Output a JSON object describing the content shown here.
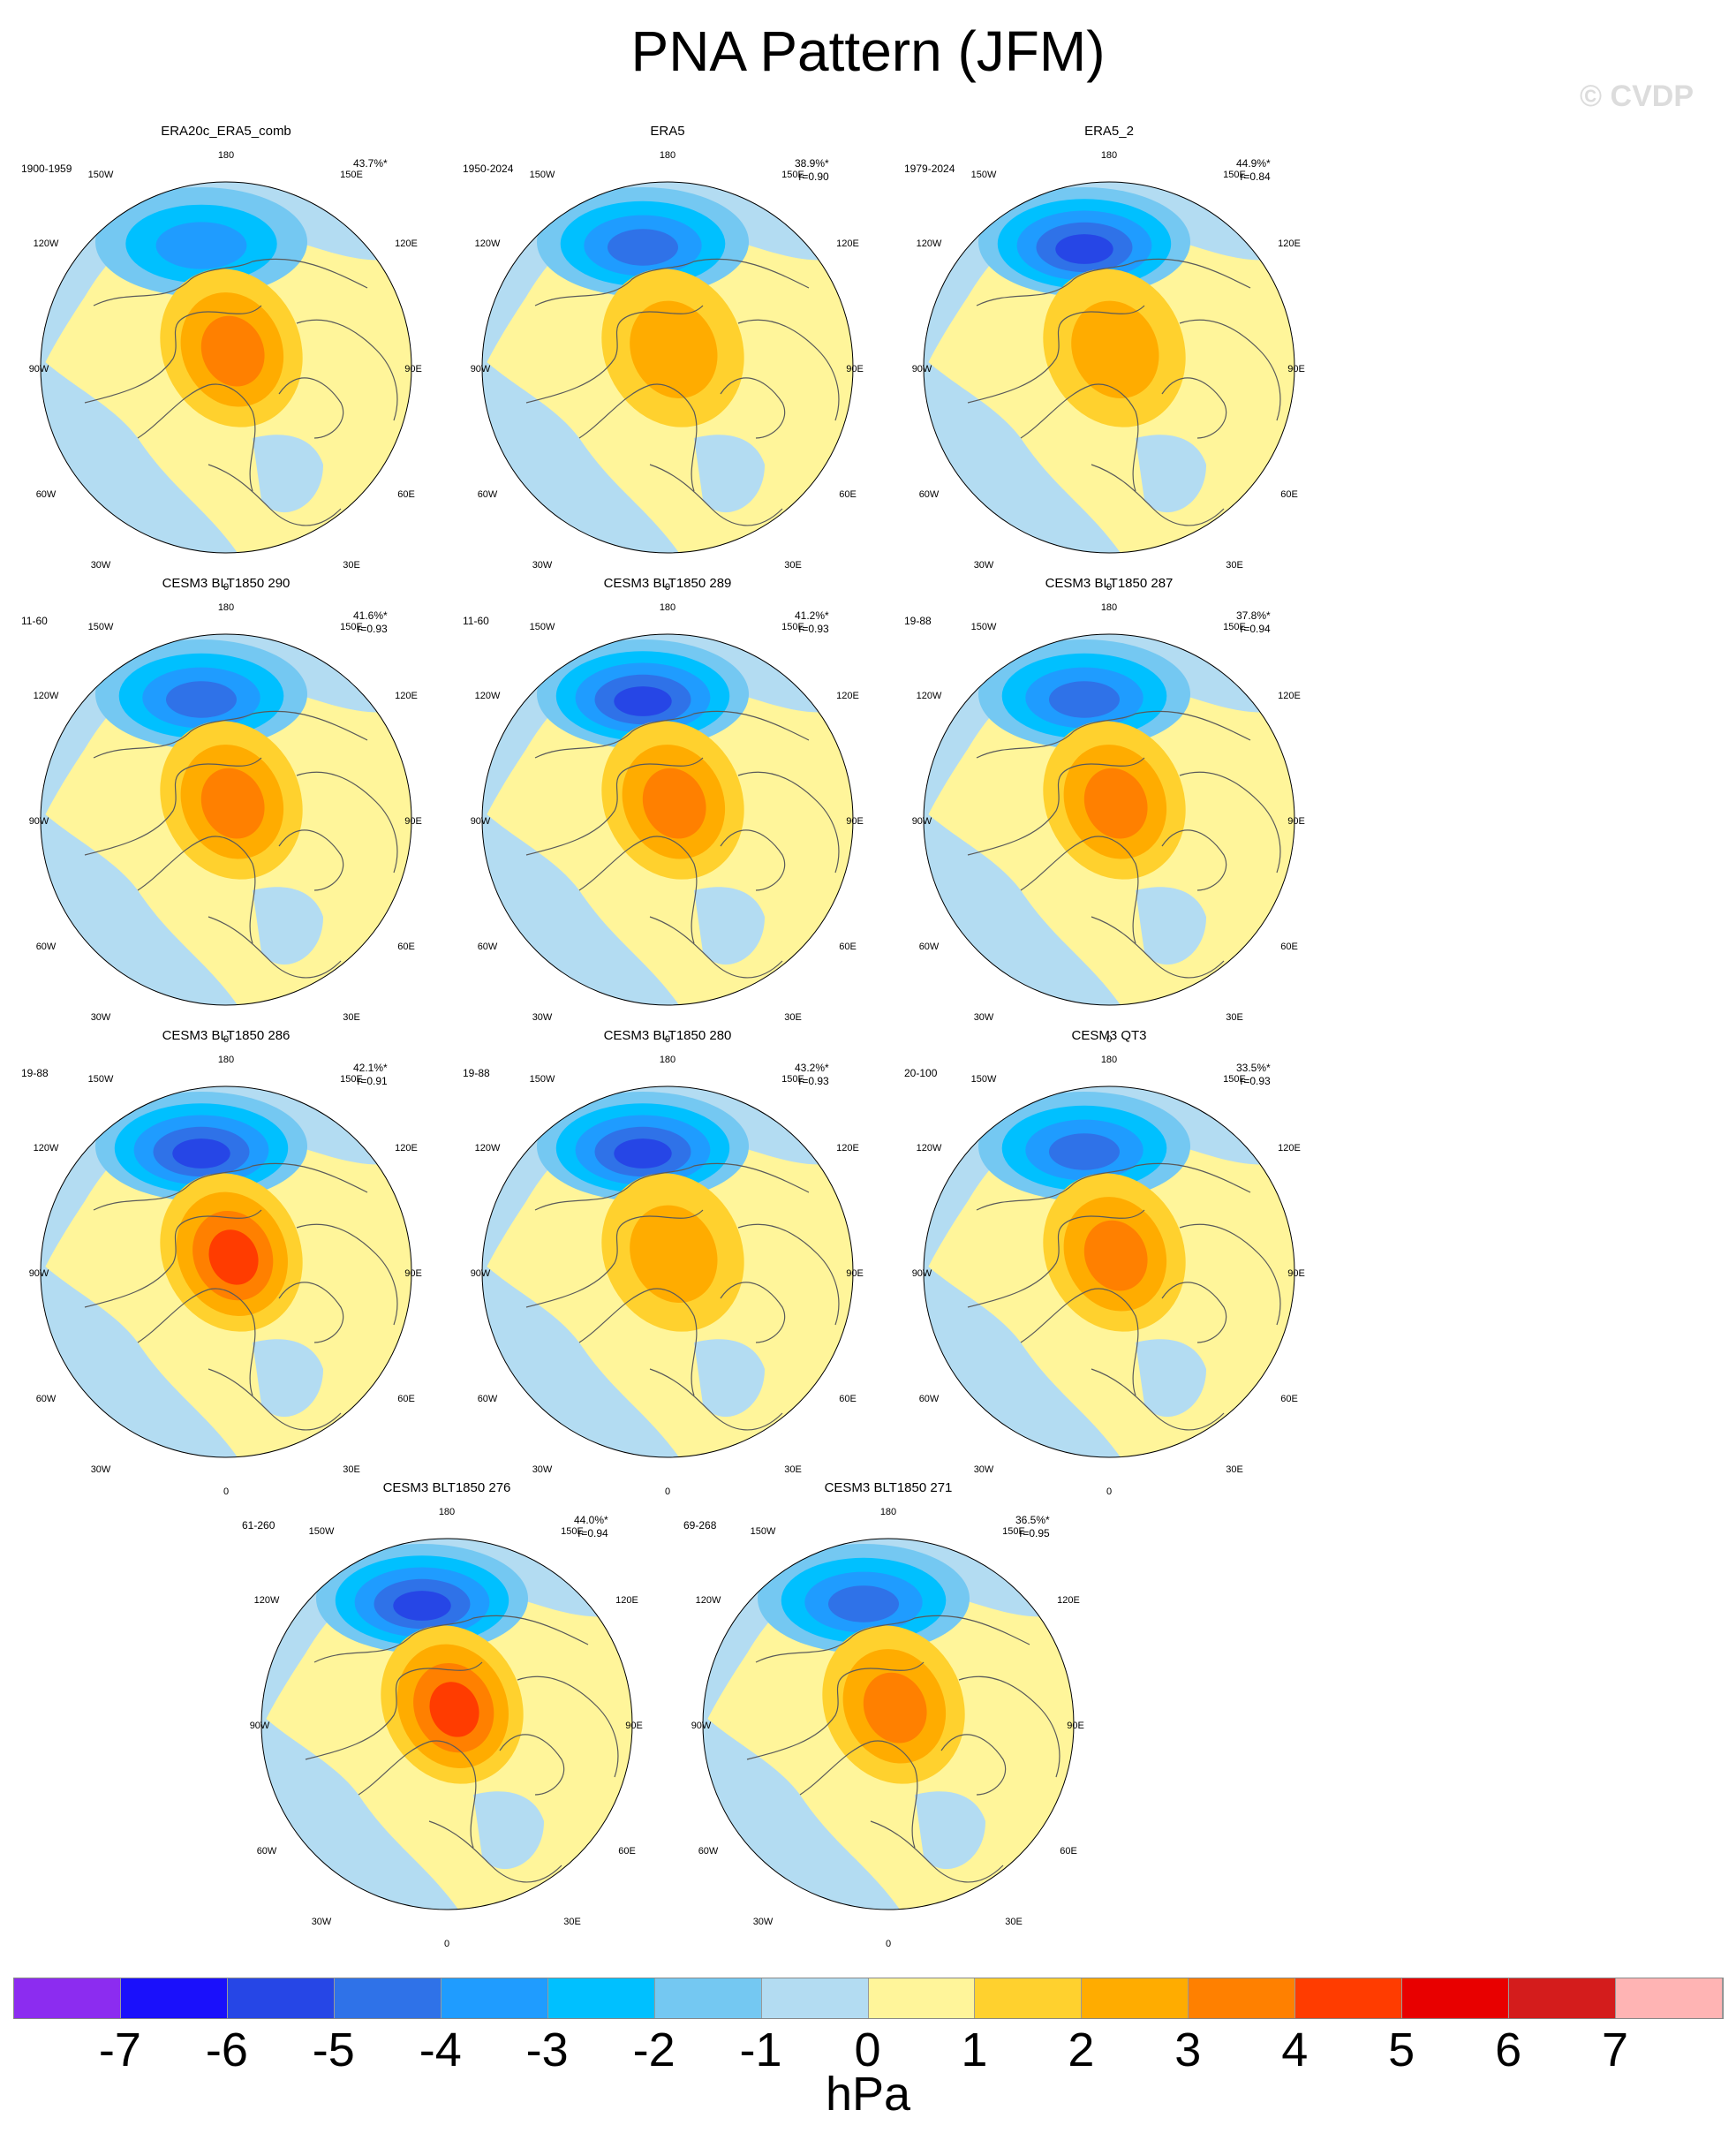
{
  "title": "PNA Pattern (JFM)",
  "copyright": "© CVDP",
  "lon_labels": {
    "top": "180",
    "tr": "150E",
    "tl": "150W",
    "r1": "120E",
    "l1": "120W",
    "r2": "90E",
    "l2": "90W",
    "r3": "60E",
    "l3": "60W",
    "br": "30E",
    "bl": "30W",
    "bottom": "0"
  },
  "colors": {
    "land_outline": "#5a5a5a",
    "ocean_neutral_neg": "#b3dcf2",
    "neutral_pos": "#fff59a"
  },
  "panels": [
    {
      "title": "ERA20c_ERA5_comb",
      "period": "1900-1959",
      "pct": "43.7%*",
      "r": "",
      "neg": [
        3,
        0
      ],
      "pos": [
        3,
        0
      ]
    },
    {
      "title": "ERA5",
      "period": "1950-2024",
      "pct": "38.9%*",
      "r": "r=0.90",
      "neg": [
        4,
        0
      ],
      "pos": [
        2,
        0
      ]
    },
    {
      "title": "ERA5_2",
      "period": "1979-2024",
      "pct": "44.9%*",
      "r": "r=0.84",
      "neg": [
        5,
        0
      ],
      "pos": [
        2,
        0
      ]
    },
    {
      "title": "CESM3 BLT1850 290",
      "period": "11-60",
      "pct": "41.6%*",
      "r": "r=0.93",
      "neg": [
        4,
        0
      ],
      "pos": [
        3,
        0
      ]
    },
    {
      "title": "CESM3 BLT1850 289",
      "period": "11-60",
      "pct": "41.2%*",
      "r": "r=0.93",
      "neg": [
        5,
        0
      ],
      "pos": [
        3,
        0
      ]
    },
    {
      "title": "CESM3 BLT1850 287",
      "period": "19-88",
      "pct": "37.8%*",
      "r": "r=0.94",
      "neg": [
        4,
        0
      ],
      "pos": [
        3,
        0
      ]
    },
    {
      "title": "CESM3 BLT1850 286",
      "period": "19-88",
      "pct": "42.1%*",
      "r": "r=0.91",
      "neg": [
        5,
        0
      ],
      "pos": [
        4,
        0
      ]
    },
    {
      "title": "CESM3 BLT1850 280",
      "period": "19-88",
      "pct": "43.2%*",
      "r": "r=0.93",
      "neg": [
        5,
        0
      ],
      "pos": [
        2,
        0
      ]
    },
    {
      "title": "CESM3 QT3",
      "period": "20-100",
      "pct": "33.5%*",
      "r": "r=0.93",
      "neg": [
        4,
        0
      ],
      "pos": [
        3,
        0
      ]
    },
    {
      "title": "CESM3 BLT1850 276",
      "period": "61-260",
      "pct": "44.0%*",
      "r": "r=0.94",
      "neg": [
        5,
        0
      ],
      "pos": [
        4,
        0
      ]
    },
    {
      "title": "CESM3 BLT1850 271",
      "period": "69-268",
      "pct": "36.5%*",
      "r": "r=0.95",
      "neg": [
        4,
        0
      ],
      "pos": [
        3,
        0
      ]
    }
  ],
  "colorbar": {
    "colors": [
      "#8c2cf0",
      "#1a10fb",
      "#2646e6",
      "#2f72e8",
      "#1f9cff",
      "#00c0ff",
      "#74c8f2",
      "#b3dcf2",
      "#fff59a",
      "#ffd12e",
      "#ffac00",
      "#ff8000",
      "#ff3c00",
      "#e80000",
      "#d41c1c",
      "#ffb4b4"
    ],
    "labels": [
      "-7",
      "-6",
      "-5",
      "-4",
      "-3",
      "-2",
      "-1",
      "0",
      "1",
      "2",
      "3",
      "4",
      "5",
      "6",
      "7"
    ],
    "units": "hPa"
  }
}
